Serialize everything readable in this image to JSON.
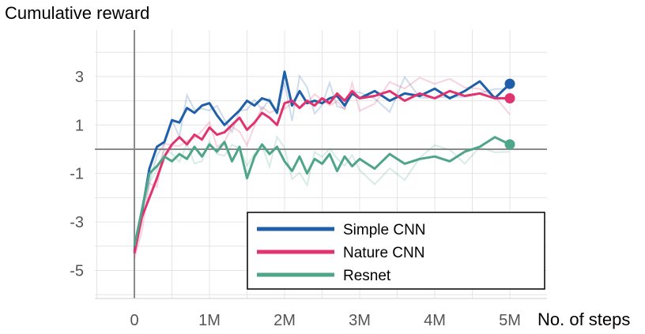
{
  "chart_data": {
    "type": "line",
    "ylabel": "Cumulative reward",
    "xlabel": "No. of steps",
    "x_ticks": [
      "0",
      "1M",
      "2M",
      "3M",
      "4M",
      "5M"
    ],
    "y_ticks": [
      "3",
      "1",
      "-1",
      "-3",
      "-5"
    ],
    "x_tick_values": [
      0,
      1000000,
      2000000,
      3000000,
      4000000,
      5000000
    ],
    "y_tick_values": [
      3,
      1,
      -1,
      -3,
      -5
    ],
    "xlim": [
      -500000,
      5500000
    ],
    "ylim": [
      -6,
      5
    ],
    "grid": true,
    "legend_position": "bottom-right",
    "series": [
      {
        "name": "Simple CNN",
        "color": "#1f5faa",
        "x": [
          0,
          100000,
          200000,
          300000,
          400000,
          500000,
          600000,
          700000,
          800000,
          900000,
          1000000,
          1100000,
          1200000,
          1300000,
          1400000,
          1500000,
          1600000,
          1700000,
          1800000,
          1900000,
          2000000,
          2100000,
          2200000,
          2300000,
          2400000,
          2500000,
          2600000,
          2700000,
          2800000,
          2900000,
          3000000,
          3200000,
          3400000,
          3600000,
          3800000,
          4000000,
          4200000,
          4400000,
          4600000,
          4800000,
          5000000
        ],
        "y": [
          -4.2,
          -2.6,
          -0.8,
          0.1,
          0.3,
          1.2,
          1.1,
          1.7,
          1.5,
          1.8,
          1.9,
          1.4,
          1.0,
          1.3,
          1.6,
          2.0,
          1.8,
          2.1,
          2.0,
          1.5,
          3.2,
          1.8,
          2.4,
          1.9,
          2.0,
          1.9,
          2.1,
          2.2,
          1.8,
          2.3,
          2.1,
          2.4,
          2.0,
          2.3,
          2.2,
          2.5,
          2.1,
          2.4,
          2.8,
          2.1,
          2.7
        ]
      },
      {
        "name": "Nature CNN",
        "color": "#e0336f",
        "x": [
          0,
          100000,
          200000,
          300000,
          400000,
          500000,
          600000,
          700000,
          800000,
          900000,
          1000000,
          1100000,
          1200000,
          1300000,
          1400000,
          1500000,
          1600000,
          1700000,
          1800000,
          1900000,
          2000000,
          2100000,
          2200000,
          2300000,
          2400000,
          2500000,
          2600000,
          2700000,
          2800000,
          2900000,
          3000000,
          3200000,
          3400000,
          3600000,
          3800000,
          4000000,
          4200000,
          4400000,
          4600000,
          4800000,
          5000000
        ],
        "y": [
          -4.3,
          -2.8,
          -2.0,
          -1.2,
          -0.3,
          0.2,
          0.5,
          0.2,
          0.6,
          0.4,
          0.9,
          0.6,
          0.7,
          1.0,
          1.3,
          0.8,
          1.1,
          1.5,
          1.3,
          1.0,
          1.9,
          2.0,
          1.7,
          2.0,
          1.8,
          2.1,
          1.9,
          2.3,
          2.0,
          2.4,
          2.1,
          2.2,
          2.4,
          2.0,
          2.3,
          2.1,
          2.4,
          2.2,
          2.3,
          2.1,
          2.1
        ]
      },
      {
        "name": "Resnet",
        "color": "#4fa58a",
        "x": [
          0,
          100000,
          200000,
          300000,
          400000,
          500000,
          600000,
          700000,
          800000,
          900000,
          1000000,
          1100000,
          1200000,
          1300000,
          1400000,
          1500000,
          1600000,
          1700000,
          1800000,
          1900000,
          2000000,
          2100000,
          2200000,
          2300000,
          2400000,
          2500000,
          2600000,
          2700000,
          2800000,
          2900000,
          3000000,
          3200000,
          3400000,
          3600000,
          3800000,
          4000000,
          4200000,
          4400000,
          4600000,
          4800000,
          5000000
        ],
        "y": [
          -4.0,
          -2.5,
          -1.0,
          -0.7,
          -0.3,
          -0.5,
          -0.2,
          -0.4,
          0.1,
          -0.3,
          0.2,
          -0.1,
          0.3,
          -0.5,
          0.1,
          -1.2,
          -0.3,
          0.2,
          -0.2,
          0.1,
          -0.5,
          -0.9,
          -0.3,
          -1.0,
          -0.4,
          -0.6,
          -0.2,
          -0.9,
          -0.3,
          -0.7,
          -0.4,
          -0.8,
          -0.2,
          -0.6,
          -0.4,
          -0.3,
          -0.5,
          -0.1,
          0.1,
          0.5,
          0.2
        ]
      }
    ]
  }
}
